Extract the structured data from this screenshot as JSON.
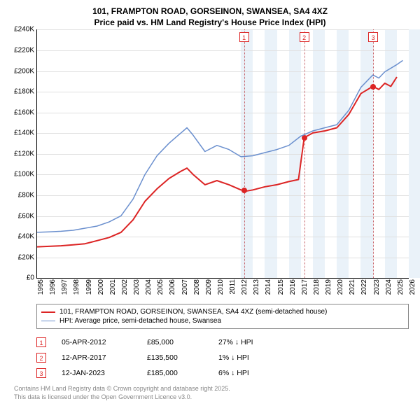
{
  "title_line1": "101, FRAMPTON ROAD, GORSEINON, SWANSEA, SA4 4XZ",
  "title_line2": "Price paid vs. HM Land Registry's House Price Index (HPI)",
  "chart": {
    "type": "line",
    "background_color": "#ffffff",
    "grid_color": "#e0e0e0",
    "axis_color": "#000000",
    "shade_color": "#eaf2f9",
    "shade_years": [
      2012,
      2014,
      2016,
      2018,
      2020,
      2022,
      2024,
      2026
    ],
    "x_min": 1995,
    "x_max": 2026,
    "x_ticks": [
      1995,
      1996,
      1997,
      1998,
      1999,
      2000,
      2001,
      2002,
      2003,
      2004,
      2005,
      2006,
      2007,
      2008,
      2009,
      2010,
      2011,
      2012,
      2013,
      2014,
      2015,
      2016,
      2017,
      2018,
      2019,
      2020,
      2021,
      2022,
      2023,
      2024,
      2025,
      2026
    ],
    "y_min": 0,
    "y_max": 240000,
    "y_tick_step": 20000,
    "y_tick_labels": [
      "£0",
      "£20K",
      "£40K",
      "£60K",
      "£80K",
      "£100K",
      "£120K",
      "£140K",
      "£160K",
      "£180K",
      "£200K",
      "£220K",
      "£240K"
    ],
    "label_fontsize": 10,
    "series": [
      {
        "name": "house",
        "label": "101, FRAMPTON ROAD, GORSEINON, SWANSEA, SA4 4XZ (semi-detached house)",
        "color": "#dc2424",
        "line_width": 2,
        "points": [
          [
            1995,
            30000
          ],
          [
            1996,
            30500
          ],
          [
            1997,
            31000
          ],
          [
            1998,
            32000
          ],
          [
            1999,
            33000
          ],
          [
            2000,
            36000
          ],
          [
            2001,
            39000
          ],
          [
            2002,
            44000
          ],
          [
            2003,
            56000
          ],
          [
            2004,
            74000
          ],
          [
            2005,
            86000
          ],
          [
            2006,
            96000
          ],
          [
            2007,
            103000
          ],
          [
            2007.5,
            106000
          ],
          [
            2008,
            100000
          ],
          [
            2009,
            90000
          ],
          [
            2010,
            94000
          ],
          [
            2011,
            90000
          ],
          [
            2012,
            85000
          ],
          [
            2012.5,
            84000
          ],
          [
            2013,
            85000
          ],
          [
            2014,
            88000
          ],
          [
            2015,
            90000
          ],
          [
            2016,
            93000
          ],
          [
            2016.8,
            95000
          ],
          [
            2017.28,
            135500
          ],
          [
            2018,
            140000
          ],
          [
            2019,
            142000
          ],
          [
            2020,
            145000
          ],
          [
            2021,
            158000
          ],
          [
            2022,
            178000
          ],
          [
            2023,
            185000
          ],
          [
            2023.5,
            182000
          ],
          [
            2024,
            188000
          ],
          [
            2024.5,
            185000
          ],
          [
            2025,
            194000
          ]
        ]
      },
      {
        "name": "hpi",
        "label": "HPI: Average price, semi-detached house, Swansea",
        "color": "#6a8fce",
        "line_width": 1.5,
        "points": [
          [
            1995,
            44000
          ],
          [
            1996,
            44500
          ],
          [
            1997,
            45000
          ],
          [
            1998,
            46000
          ],
          [
            1999,
            48000
          ],
          [
            2000,
            50000
          ],
          [
            2001,
            54000
          ],
          [
            2002,
            60000
          ],
          [
            2003,
            76000
          ],
          [
            2004,
            100000
          ],
          [
            2005,
            118000
          ],
          [
            2006,
            130000
          ],
          [
            2007,
            140000
          ],
          [
            2007.5,
            145000
          ],
          [
            2008,
            138000
          ],
          [
            2009,
            122000
          ],
          [
            2010,
            128000
          ],
          [
            2011,
            124000
          ],
          [
            2012,
            117000
          ],
          [
            2013,
            118000
          ],
          [
            2014,
            121000
          ],
          [
            2015,
            124000
          ],
          [
            2016,
            128000
          ],
          [
            2017,
            137000
          ],
          [
            2018,
            142000
          ],
          [
            2019,
            145000
          ],
          [
            2020,
            148000
          ],
          [
            2021,
            162000
          ],
          [
            2022,
            184000
          ],
          [
            2023,
            196000
          ],
          [
            2023.5,
            193000
          ],
          [
            2024,
            199000
          ],
          [
            2025,
            206000
          ],
          [
            2025.5,
            210000
          ]
        ]
      }
    ],
    "markers": [
      {
        "num": "1",
        "year": 2012.26,
        "price": 85000
      },
      {
        "num": "2",
        "year": 2017.28,
        "price": 135500
      },
      {
        "num": "3",
        "year": 2023.03,
        "price": 185000
      }
    ],
    "marker_line_color": "#c2585f",
    "marker_box_border": "#dc2424",
    "marker_text_color": "#dc2424"
  },
  "legend": {
    "items": [
      {
        "color": "#dc2424",
        "width": 2,
        "label_key": "chart.series.0.label"
      },
      {
        "color": "#6a8fce",
        "width": 1.5,
        "label_key": "chart.series.1.label"
      }
    ]
  },
  "sales": [
    {
      "num": "1",
      "date": "05-APR-2012",
      "price": "£85,000",
      "diff": "27% ↓ HPI"
    },
    {
      "num": "2",
      "date": "12-APR-2017",
      "price": "£135,500",
      "diff": "1% ↓ HPI"
    },
    {
      "num": "3",
      "date": "12-JAN-2023",
      "price": "£185,000",
      "diff": "6% ↓ HPI"
    }
  ],
  "footnote_line1": "Contains HM Land Registry data © Crown copyright and database right 2025.",
  "footnote_line2": "This data is licensed under the Open Government Licence v3.0."
}
